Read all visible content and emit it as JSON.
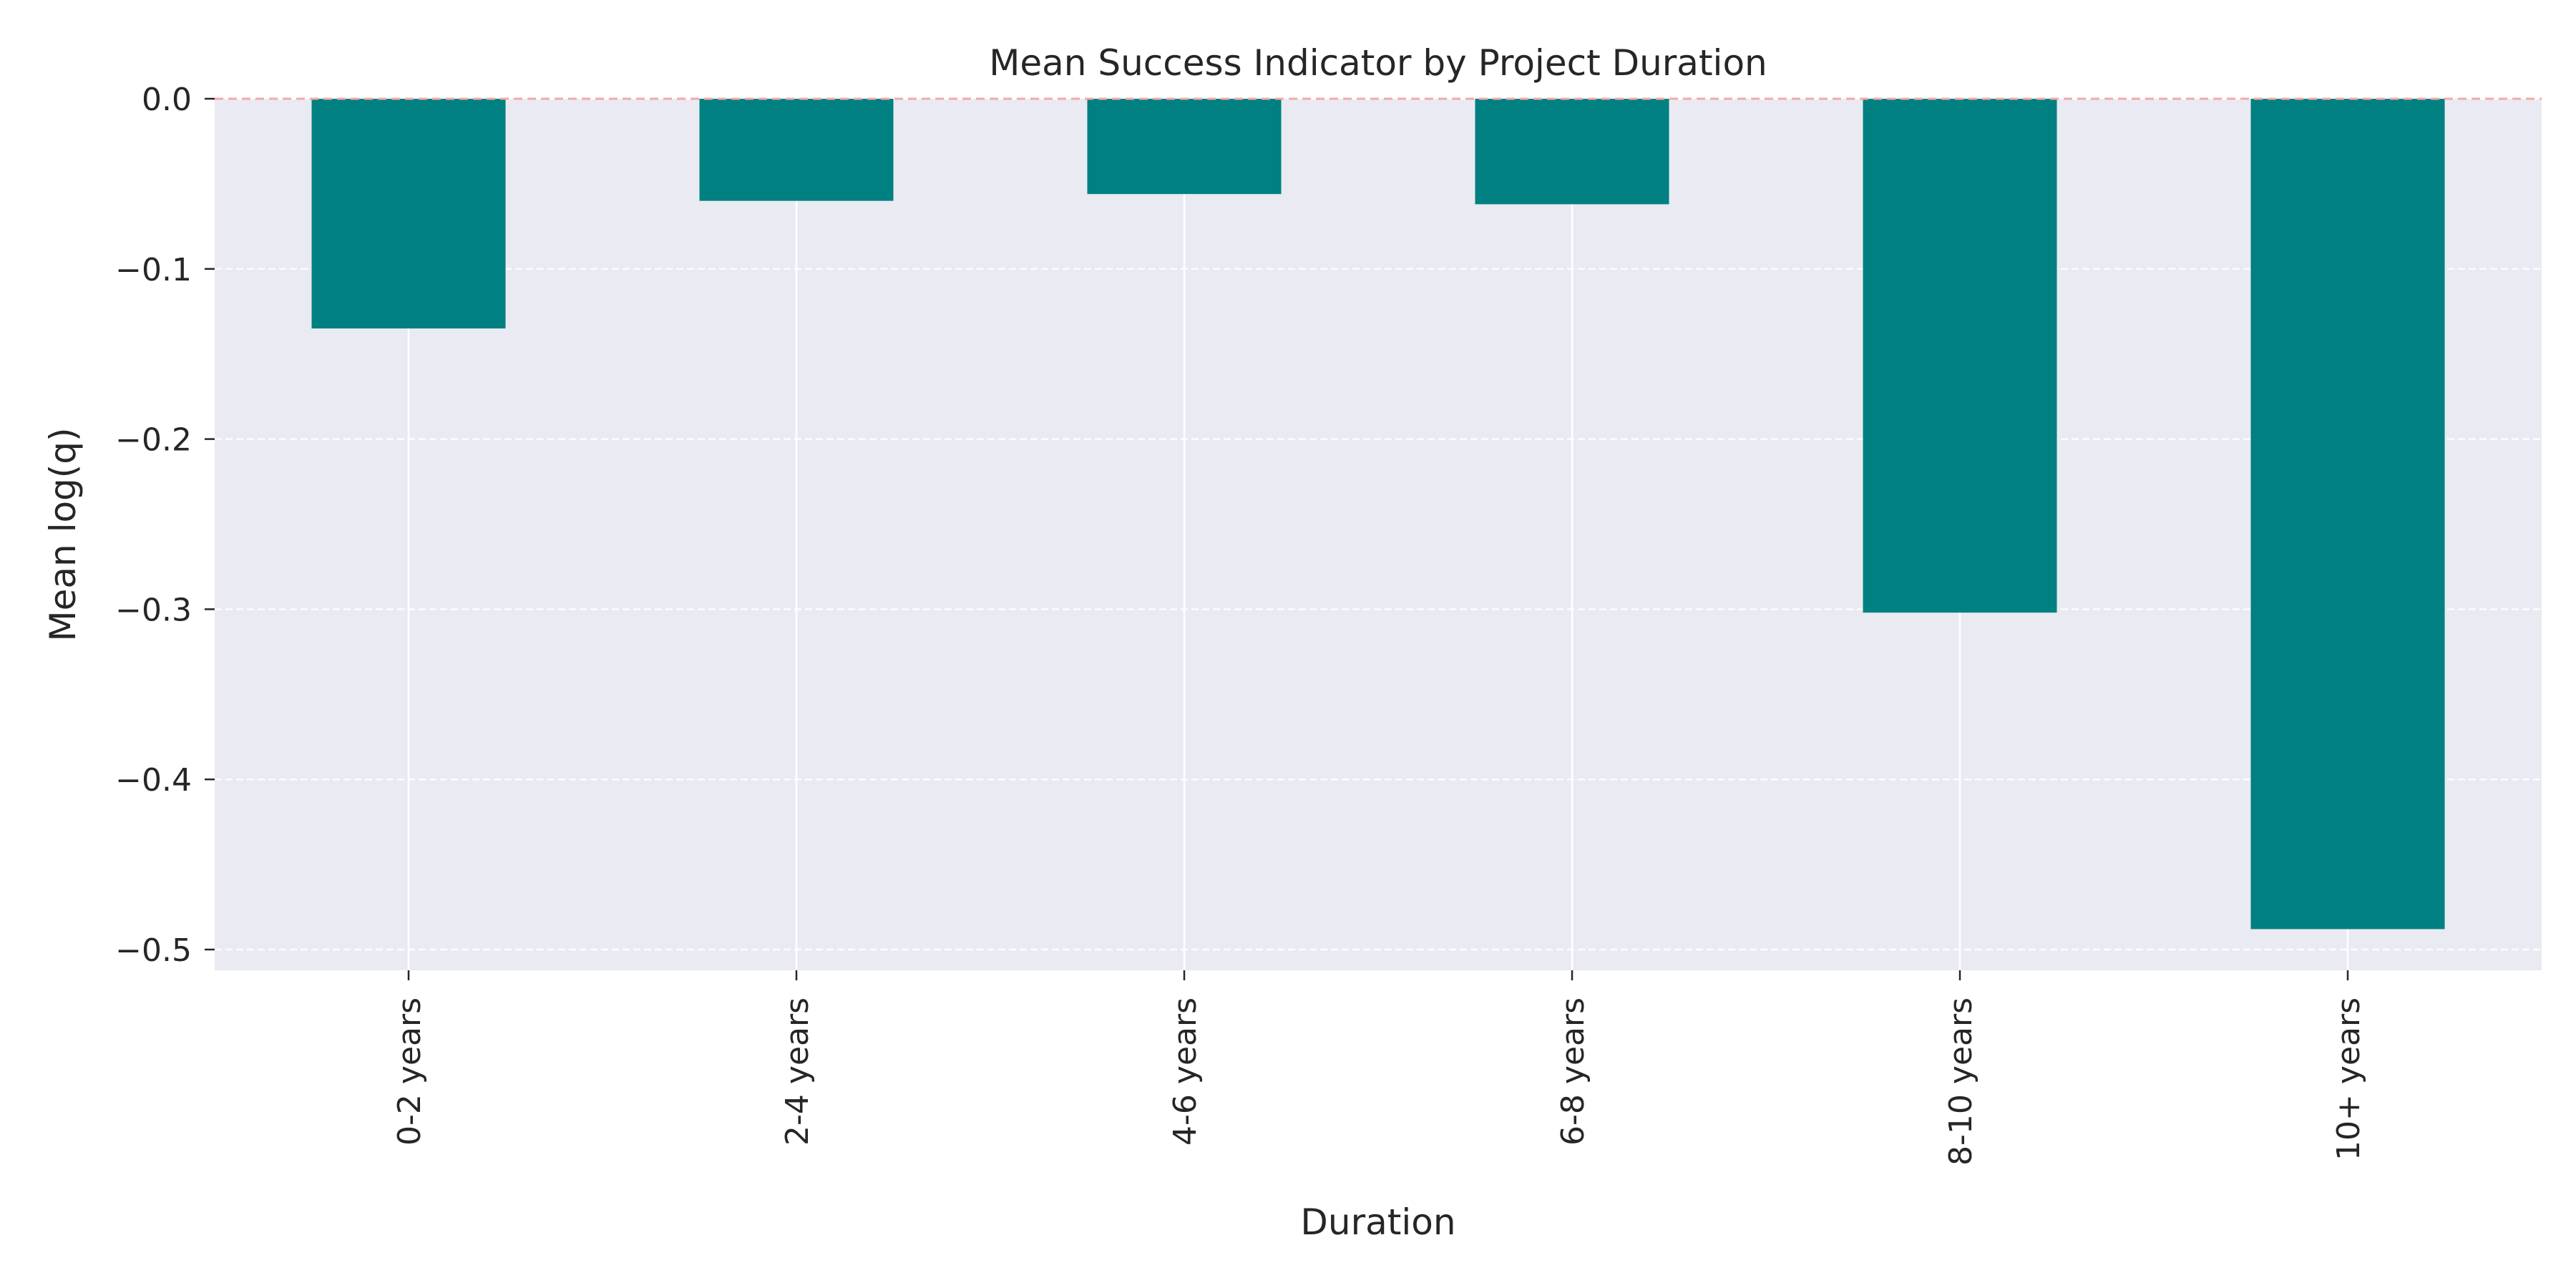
{
  "chart_data": {
    "type": "bar",
    "title": "Mean Success Indicator by Project Duration",
    "xlabel": "Duration",
    "ylabel": "Mean log(q)",
    "categories": [
      "0-2 years",
      "2-4 years",
      "4-6 years",
      "6-8 years",
      "8-10 years",
      "10+ years"
    ],
    "values": [
      -0.135,
      -0.06,
      -0.056,
      -0.062,
      -0.302,
      -0.488
    ],
    "ylim": [
      -0.512,
      0.0
    ],
    "yticks": [
      0.0,
      -0.1,
      -0.2,
      -0.3,
      -0.4,
      -0.5
    ],
    "ytick_labels": [
      "0.0",
      "−0.1",
      "−0.2",
      "−0.3",
      "−0.4",
      "−0.5"
    ],
    "grid": true,
    "reference_line": 0.0,
    "colors": {
      "bar": "#008080",
      "background": "#eaeaf2",
      "grid": "#ffffff",
      "reference_line": "#f4a9a9"
    }
  }
}
